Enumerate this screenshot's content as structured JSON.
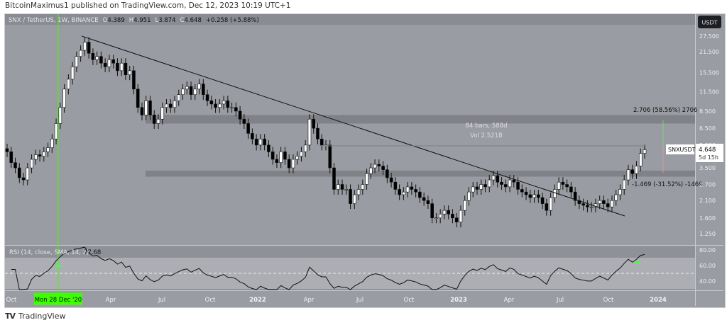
{
  "header": {
    "published": "BitcoinMaximus1 published on TradingView.com, Dec 12, 2023 10:19 UTC+1"
  },
  "legend": {
    "symbol": "SNX / TetherUS, 1W, BINANCE",
    "o_label": "O",
    "o": "4.389",
    "h_label": "H",
    "h": "4.951",
    "l_label": "L",
    "l": "3.874",
    "c_label": "C",
    "c": "4.648",
    "change": "+0.258 (+5.88%)"
  },
  "price_axis": {
    "currency": "USDT",
    "ticks": [
      "27.500",
      "21.500",
      "15.500",
      "11.500",
      "8.500",
      "6.500",
      "5.000",
      "3.500",
      "2.700",
      "2.100",
      "1.600",
      "1.250"
    ]
  },
  "last_price": {
    "symbol": "SNXUSDT",
    "price": "4.648",
    "countdown": "5d 15h"
  },
  "measure": {
    "bars": "84 bars, 588d",
    "vol": "Vol 2.521B",
    "up": "2.706 (58.56%) 2706",
    "down": "-1.469 (-31.52%) -1469"
  },
  "rsi": {
    "label": "RSI (14, close, SMA, 14, 2)",
    "value": "77.68",
    "ticks": [
      "80.00",
      "60.00",
      "40.00"
    ]
  },
  "time_axis": {
    "ticks": [
      "Oct",
      "Apr",
      "Jul",
      "Oct",
      "2022",
      "Apr",
      "Jul",
      "Oct",
      "2023",
      "Apr",
      "Jul",
      "Oct",
      "2024"
    ],
    "crosshair": "Mon 28 Dec '20"
  },
  "footer": {
    "brand": "TradingView"
  },
  "colors": {
    "up": "#ffffff",
    "down": "#000000",
    "crosshair": "#3cff00",
    "background": "#9a9ca3"
  },
  "chart_data": {
    "type": "candlestick",
    "scale": "log",
    "ylim": [
      1.1,
      34
    ],
    "first_week": "2020-10-05",
    "last_week": "2023-12-11",
    "closes": [
      4.5,
      3.8,
      3.5,
      3.0,
      2.9,
      3.5,
      4.0,
      4.3,
      4.2,
      4.5,
      4.8,
      5.5,
      7.0,
      9.0,
      12,
      14,
      17,
      20,
      22,
      25,
      21,
      19,
      20,
      18,
      17,
      19,
      18,
      16,
      18,
      15,
      16,
      12,
      9,
      8,
      10,
      8,
      7,
      7.5,
      9,
      9.5,
      9,
      10,
      11,
      12,
      12.5,
      11,
      12,
      13,
      11,
      10,
      9.5,
      9,
      9.5,
      10,
      9,
      9,
      8.5,
      7.5,
      7,
      6,
      5.5,
      5,
      5.5,
      5,
      4.5,
      4,
      3.8,
      4.5,
      4,
      3.5,
      4,
      4.2,
      4.5,
      5,
      7.5,
      6.5,
      5.5,
      5,
      5,
      3.5,
      2.5,
      2.7,
      2.5,
      2.5,
      2.0,
      2.3,
      2.5,
      2.7,
      3.2,
      3.5,
      3.7,
      3.6,
      3.4,
      3.0,
      2.8,
      2.5,
      2.3,
      2.4,
      2.6,
      2.5,
      2.4,
      2.2,
      2.1,
      2.0,
      1.6,
      1.6,
      1.7,
      1.8,
      1.7,
      1.6,
      1.5,
      1.8,
      2.1,
      2.4,
      2.6,
      2.5,
      2.7,
      2.6,
      2.9,
      3.1,
      2.8,
      2.7,
      2.6,
      2.9,
      2.8,
      2.5,
      2.4,
      2.3,
      2.2,
      2.3,
      2.2,
      2.0,
      1.8,
      2.2,
      2.5,
      2.8,
      2.7,
      2.6,
      2.4,
      2.1,
      2.0,
      1.95,
      1.9,
      1.9,
      2.0,
      2.1,
      2.0,
      1.9,
      2.1,
      2.3,
      2.5,
      2.9,
      3.4,
      3.2,
      3.6,
      4.389,
      4.648
    ],
    "zones": [
      [
        7.0,
        8.0
      ],
      [
        3.05,
        3.35
      ]
    ],
    "trendline": [
      [
        27.5,
        "2021-02-15"
      ],
      [
        1.65,
        "2023-11-20"
      ]
    ]
  }
}
